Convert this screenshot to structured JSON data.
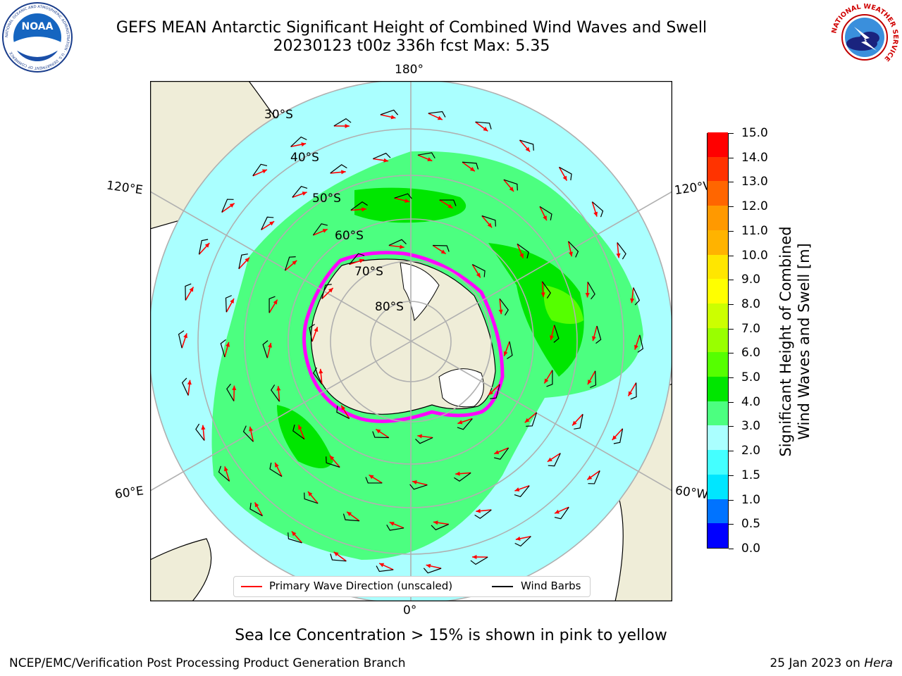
{
  "header": {
    "title_line1": "GEFS MEAN Antarctic Significant Height of Combined Wind Waves and Swell",
    "title_line2": "20230123 t00z 336h fcst   Max: 5.35"
  },
  "logos": {
    "noaa": {
      "text": "NOAA",
      "ring_text": "NATIONAL OCEANIC AND ATMOSPHERIC ADMINISTRATION · U.S. DEPARTMENT OF COMMERCE"
    },
    "nws": {
      "ring_text": "NATIONAL WEATHER SERVICE"
    }
  },
  "map": {
    "projection": "south-polar stereographic",
    "lat_labels": [
      "30°S",
      "40°S",
      "50°S",
      "60°S",
      "70°S",
      "80°S"
    ],
    "lon_labels": {
      "top": "180°",
      "bottom": "0°",
      "upper_left": "120°E",
      "upper_right": "120°W",
      "lower_left": "60°E",
      "lower_right": "60°W"
    }
  },
  "legend": {
    "wave_label": "Primary Wave Direction (unscaled)",
    "barb_label": "Wind Barbs",
    "wave_color": "#ff0000",
    "barb_color": "#000000"
  },
  "colorbar": {
    "title_line1": "Significant Height of Combined",
    "title_line2": "Wind Waves and Swell [m]",
    "ticks": [
      "0.0",
      "0.5",
      "1.0",
      "1.5",
      "2.0",
      "3.0",
      "4.0",
      "5.0",
      "6.0",
      "7.0",
      "8.0",
      "9.0",
      "10.0",
      "11.0",
      "12.0",
      "13.0",
      "14.0",
      "15.0"
    ],
    "colors": [
      "#0000ff",
      "#0073ff",
      "#00e6ff",
      "#44ffff",
      "#aaffff",
      "#4cff80",
      "#00e600",
      "#55ff00",
      "#99ff00",
      "#ccff00",
      "#ffff00",
      "#ffe600",
      "#ffb300",
      "#ff9900",
      "#ff6600",
      "#ff3300",
      "#ff0000"
    ]
  },
  "footer": {
    "ice_note": "Sea Ice Concentration > 15% is shown in pink to yellow",
    "left": "NCEP/EMC/Verification Post Processing Product Generation Branch",
    "right_date": "25 Jan 2023 on ",
    "right_machine": "Hera"
  }
}
